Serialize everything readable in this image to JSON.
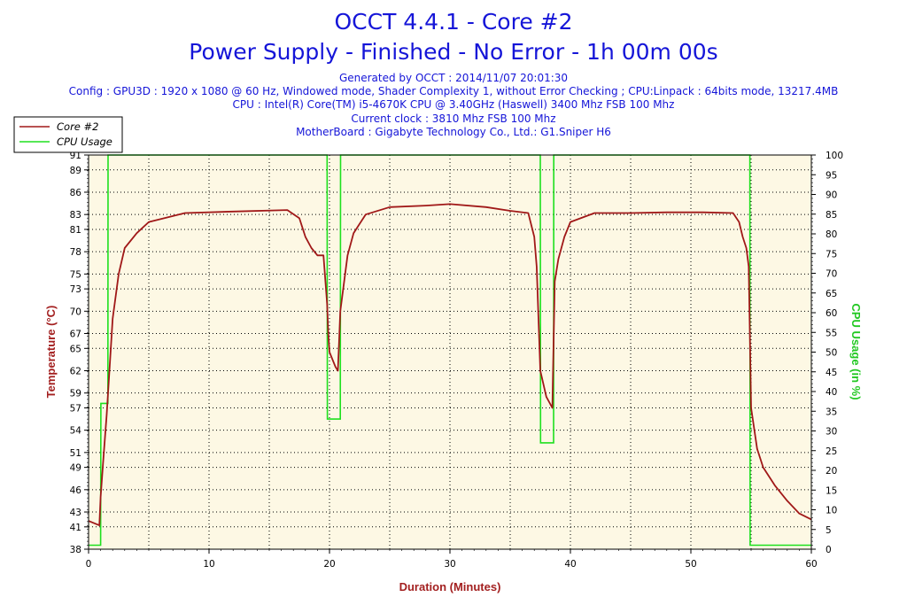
{
  "title": "OCCT 4.4.1 - Core #2",
  "subtitle": "Power Supply - Finished - No Error - 1h 00m 00s",
  "info_lines": [
    "Generated by OCCT : 2014/11/07 20:01:30",
    "Config : GPU3D : 1920 x 1080 @ 60 Hz, Windowed mode, Shader Complexity 1, without Error Checking ; CPU:Linpack : 64bits mode, 13217.4MB",
    "CPU : Intel(R) Core(TM) i5-4670K CPU @ 3.40GHz (Haswell) 3400 Mhz FSB 100 Mhz",
    "Current clock : 3810 Mhz FSB 100 Mhz",
    "MotherBoard : Gigabyte Technology Co., Ltd.: G1.Sniper H6"
  ],
  "colors": {
    "temperature": "#a01818",
    "cpu_usage": "#1ee01e",
    "plot_bg": "#fdf8e4",
    "title": "#1515d8"
  },
  "chart_data": {
    "type": "line",
    "xlabel": "Duration (Minutes)",
    "ylabel_left": "Temperature (°C)",
    "ylabel_right": "CPU Usage (in %)",
    "xlim": [
      0,
      60
    ],
    "ylim_left": [
      38,
      91
    ],
    "ylim_right": [
      0,
      100
    ],
    "x_ticks": [
      0,
      10,
      20,
      30,
      40,
      50,
      60
    ],
    "y_left_ticks": [
      38,
      41,
      43,
      46,
      49,
      51,
      54,
      57,
      59,
      62,
      65,
      67,
      70,
      73,
      75,
      78,
      81,
      83,
      86,
      89,
      91
    ],
    "y_right_ticks": [
      0,
      5,
      10,
      15,
      20,
      25,
      30,
      35,
      40,
      45,
      50,
      55,
      60,
      65,
      70,
      75,
      80,
      85,
      90,
      95,
      100
    ],
    "grid": true,
    "legend_position": "top-left",
    "series": [
      {
        "name": "Core #2",
        "axis": "left",
        "x": [
          0,
          0.9,
          1.0,
          1.2,
          1.5,
          2.0,
          2.5,
          3.0,
          4.0,
          5.0,
          8.0,
          12.0,
          16.5,
          17.5,
          18.0,
          18.5,
          19.0,
          19.5,
          19.8,
          19.9,
          20.0,
          20.5,
          20.7,
          20.9,
          21.5,
          22.0,
          23.0,
          25.0,
          28.0,
          30.0,
          33.0,
          35.0,
          36.5,
          37.0,
          37.2,
          37.5,
          38.0,
          38.5,
          38.7,
          39.0,
          39.5,
          40.0,
          42.0,
          45.0,
          48.0,
          51.0,
          53.5,
          54.0,
          54.3,
          54.6,
          54.8,
          55.0,
          55.5,
          56.0,
          57.0,
          58.0,
          59.0,
          60.0
        ],
        "values": [
          41.8,
          41.2,
          45.0,
          49.5,
          56.0,
          69.0,
          75.0,
          78.5,
          80.5,
          82.0,
          83.2,
          83.4,
          83.6,
          82.5,
          80.0,
          78.5,
          77.5,
          77.5,
          71.0,
          67.0,
          64.5,
          62.5,
          62.0,
          70.0,
          77.5,
          80.5,
          83.0,
          84.0,
          84.2,
          84.4,
          84.0,
          83.5,
          83.2,
          80.0,
          76.0,
          62.0,
          58.5,
          57.0,
          74.0,
          77.0,
          80.0,
          82.0,
          83.2,
          83.2,
          83.3,
          83.3,
          83.2,
          82.0,
          80.0,
          78.5,
          76.0,
          57.0,
          51.5,
          49.0,
          46.5,
          44.5,
          42.8,
          42.0
        ]
      },
      {
        "name": "CPU Usage",
        "axis": "right",
        "x": [
          0,
          1.0,
          1.02,
          1.6,
          1.62,
          19.8,
          19.82,
          20.9,
          20.92,
          37.5,
          37.52,
          38.6,
          38.62,
          54.9,
          54.92,
          60.0
        ],
        "values": [
          1,
          1,
          37,
          37,
          100,
          100,
          33,
          33,
          100,
          100,
          27,
          27,
          100,
          100,
          1,
          1
        ]
      }
    ]
  }
}
